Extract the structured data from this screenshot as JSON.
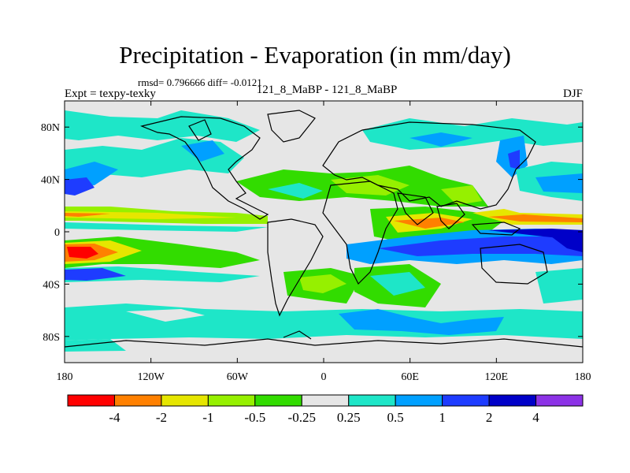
{
  "title": "Precipitation - Evaporation (in mm/day)",
  "stats": "rmsd= 0.796666 diff= -0.0121",
  "expt": "Expt = texpy-texky",
  "comparison": "121_8_MaBP - 121_8_MaBP",
  "season": "DJF",
  "map": {
    "lat_ticks": [
      {
        "value": 80,
        "label": "80N"
      },
      {
        "value": 40,
        "label": "40N"
      },
      {
        "value": 0,
        "label": "0"
      },
      {
        "value": -40,
        "label": "40S"
      },
      {
        "value": -80,
        "label": "80S"
      }
    ],
    "lon_ticks": [
      {
        "value": -180,
        "label": "180"
      },
      {
        "value": -120,
        "label": "120W"
      },
      {
        "value": -60,
        "label": "60W"
      },
      {
        "value": 0,
        "label": "0"
      },
      {
        "value": 60,
        "label": "60E"
      },
      {
        "value": 120,
        "label": "120E"
      },
      {
        "value": 180,
        "label": "180"
      }
    ]
  },
  "colorbar": {
    "colors": [
      "#ff0000",
      "#ff8000",
      "#e6e600",
      "#96f000",
      "#32dc00",
      "#e6e6e6",
      "#1ee6c8",
      "#00a0ff",
      "#1e3cff",
      "#0000c8",
      "#8c32e6"
    ],
    "labels": [
      "-4",
      "-2",
      "-1",
      "-0.5",
      "-0.25",
      "0.25",
      "0.5",
      "1",
      "2",
      "4"
    ]
  }
}
